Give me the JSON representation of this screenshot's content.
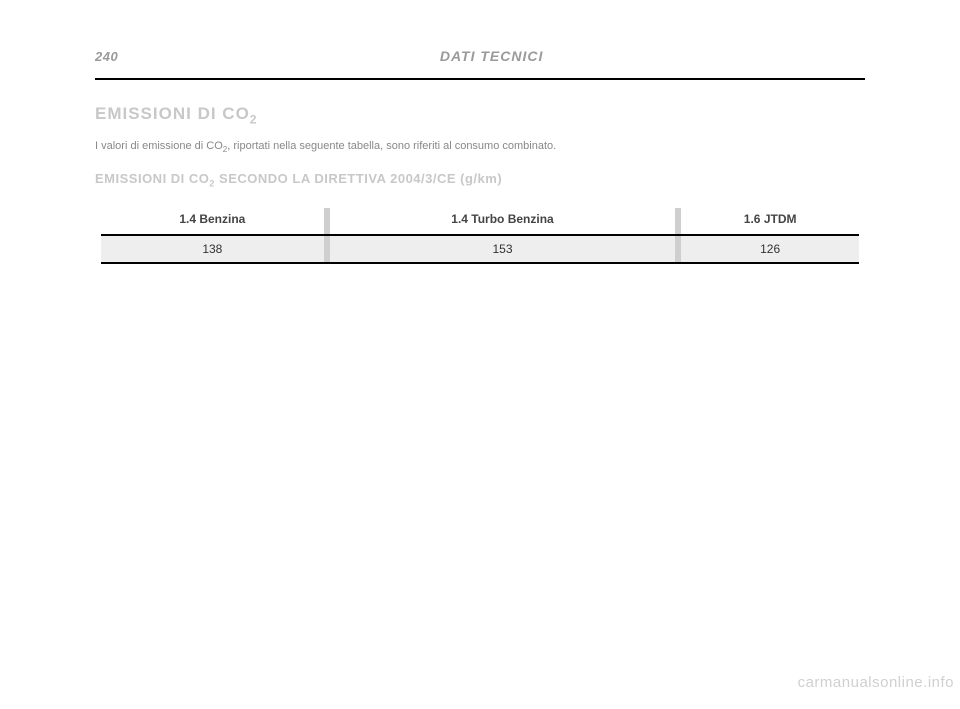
{
  "header": {
    "page_number": "240",
    "title": "DATI TECNICI"
  },
  "section": {
    "title_prefix": "EMISSIONI DI CO",
    "title_sub": "2",
    "intro_before": "I valori di emissione di CO",
    "intro_sub": "2",
    "intro_after": ", riportati nella seguente tabella, sono riferiti al consumo combinato.",
    "subtitle_before": "EMISSIONI DI CO",
    "subtitle_sub": "2",
    "subtitle_after": " SECONDO LA DIRETTIVA 2004/3/CE (g/km)"
  },
  "table": {
    "columns": [
      "1.4 Benzina",
      "1.4 Turbo Benzina",
      "1.6 JTDM"
    ],
    "row": [
      "138",
      "153",
      "126"
    ],
    "header_fontsize": 12,
    "cell_fontsize": 12,
    "cell_bg": "#eeeeee",
    "sep_color": "#000000",
    "gap_color": "#cfcfcf"
  },
  "watermark": "carmanualsonline.info"
}
